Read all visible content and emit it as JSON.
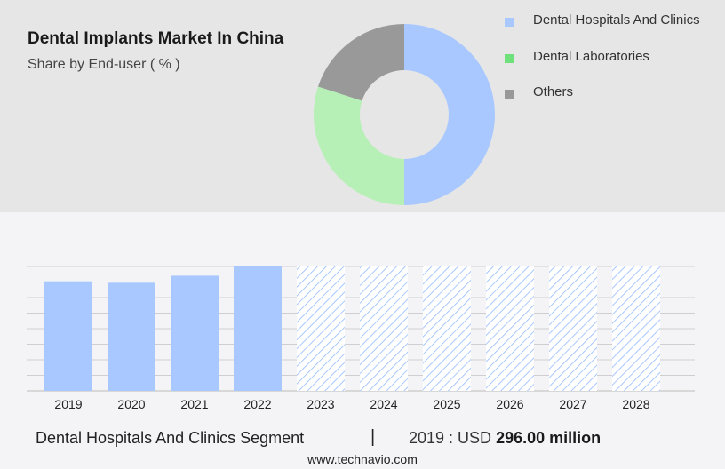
{
  "chart_data": [
    {
      "type": "pie",
      "title": "Dental Implants Market In China",
      "subtitle": "Share by End-user ( % )",
      "donut": true,
      "series": [
        {
          "name": "Dental Hospitals And Clinics",
          "value": 50,
          "color": "#a8c8ff"
        },
        {
          "name": "Dental Laboratories",
          "value": 30,
          "color": "#b6f0b6"
        },
        {
          "name": "Others",
          "value": 20,
          "color": "#999999"
        }
      ],
      "legend_colors": [
        "#a8c8ff",
        "#6ee17a",
        "#999999"
      ],
      "legend_placement": "right"
    },
    {
      "type": "bar",
      "categories": [
        "2019",
        "2020",
        "2021",
        "2022",
        "2023",
        "2024",
        "2025",
        "2026",
        "2027",
        "2028"
      ],
      "values": [
        296,
        292,
        311,
        336,
        336,
        336,
        336,
        336,
        336,
        336
      ],
      "forecast_from": "2023",
      "ylim": [
        0,
        336
      ],
      "grid": true,
      "bar_color": "#a8c8ff",
      "forecast_color": "#a8c8ff"
    }
  ],
  "footer": {
    "segment": "Dental Hospitals And Clinics Segment",
    "separator": "|",
    "year_label": "2019 : USD",
    "value": "296.00 million",
    "site": "www.technavio.com"
  }
}
